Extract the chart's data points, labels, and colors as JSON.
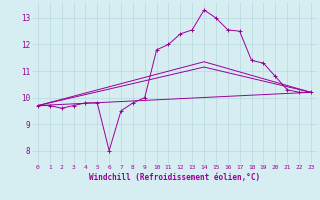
{
  "xlabel": "Windchill (Refroidissement éolien,°C)",
  "background_color": "#d6eef2",
  "grid_color": "#b8d8de",
  "line_color": "#990099",
  "x_ticks": [
    0,
    1,
    2,
    3,
    4,
    5,
    6,
    7,
    8,
    9,
    10,
    11,
    12,
    13,
    14,
    15,
    16,
    17,
    18,
    19,
    20,
    21,
    22,
    23
  ],
  "ylim": [
    7.5,
    13.6
  ],
  "xlim": [
    -0.5,
    23.5
  ],
  "yticks": [
    8,
    9,
    10,
    11,
    12,
    13
  ],
  "series1": [
    9.7,
    9.7,
    9.6,
    9.7,
    9.8,
    9.8,
    8.0,
    9.5,
    9.8,
    10.0,
    11.8,
    12.0,
    12.4,
    12.55,
    13.3,
    13.0,
    12.55,
    12.5,
    11.4,
    11.3,
    10.8,
    10.3,
    10.2,
    10.2
  ],
  "series2_x": [
    0,
    23
  ],
  "series2_y": [
    9.7,
    10.2
  ],
  "series3_x": [
    0,
    14,
    23
  ],
  "series3_y": [
    9.7,
    11.35,
    10.2
  ],
  "series4_x": [
    0,
    14,
    23
  ],
  "series4_y": [
    9.7,
    11.15,
    10.2
  ]
}
